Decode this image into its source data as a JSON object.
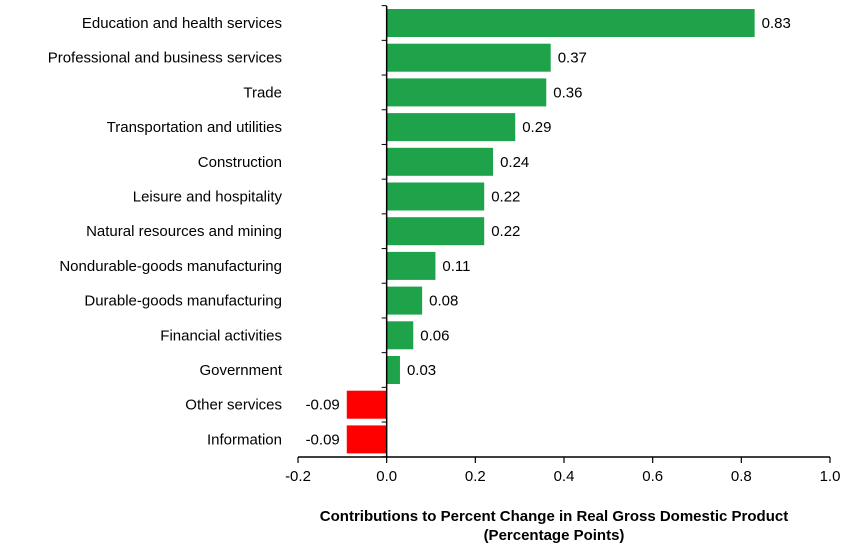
{
  "chart_data": {
    "type": "bar",
    "orientation": "horizontal",
    "categories": [
      "Education and health services",
      "Professional and business services",
      "Trade",
      "Transportation and utilities",
      "Construction",
      "Leisure and hospitality",
      "Natural resources and mining",
      "Nondurable-goods manufacturing",
      "Durable-goods manufacturing",
      "Financial activities",
      "Government",
      "Other services",
      "Information"
    ],
    "values": [
      0.83,
      0.37,
      0.36,
      0.29,
      0.24,
      0.22,
      0.22,
      0.11,
      0.08,
      0.06,
      0.03,
      -0.09,
      -0.09
    ],
    "value_labels": [
      "0.83",
      "0.37",
      "0.36",
      "0.29",
      "0.24",
      "0.22",
      "0.22",
      "0.11",
      "0.08",
      "0.06",
      "0.03",
      "-0.09",
      "-0.09"
    ],
    "xlim": [
      -0.2,
      1.0
    ],
    "xticks": [
      -0.2,
      0.0,
      0.2,
      0.4,
      0.6,
      0.8,
      1.0
    ],
    "xtick_labels": [
      "-0.2",
      "0.0",
      "0.2",
      "0.4",
      "0.6",
      "0.8",
      "1.0"
    ],
    "xlabel_lines": [
      "Contributions to Percent Change in Real Gross Domestic Product",
      "(Percentage Points)"
    ],
    "title": "",
    "grid": false,
    "legend": "none",
    "colors": {
      "positive": "#1ea34a",
      "negative": "#ff0000",
      "axis": "#000000"
    }
  }
}
